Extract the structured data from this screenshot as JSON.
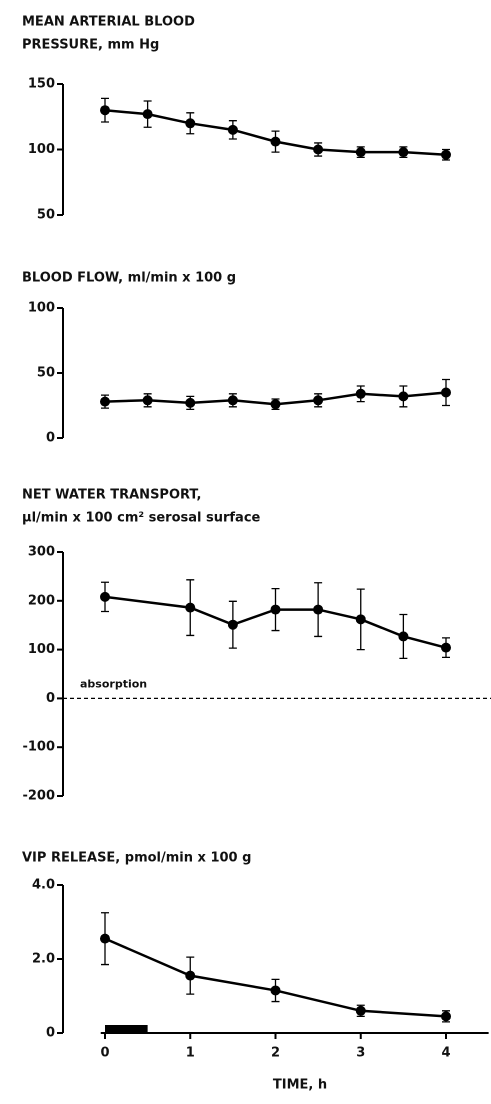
{
  "chart_data": [
    {
      "type": "line",
      "title": [
        "MEAN ARTERIAL BLOOD",
        "PRESSURE, mm Hg"
      ],
      "x": [
        0,
        0.5,
        1,
        1.5,
        2,
        2.5,
        3,
        3.5,
        4
      ],
      "series": [
        {
          "color": "#000000",
          "values": [
            130,
            127,
            120,
            115,
            106,
            100,
            98,
            98,
            96
          ],
          "errors": [
            9,
            10,
            8,
            7,
            8,
            5,
            4,
            4,
            4
          ]
        }
      ],
      "xlim": [
        -0.05,
        4.5
      ],
      "ylim": [
        50,
        150
      ],
      "yticks": [
        50,
        100,
        150
      ]
    },
    {
      "type": "line",
      "title": [
        "BLOOD FLOW, ml/min x 100 g"
      ],
      "x": [
        0,
        0.5,
        1,
        1.5,
        2,
        2.5,
        3,
        3.5,
        4
      ],
      "series": [
        {
          "color": "#000000",
          "values": [
            28,
            29,
            27,
            29,
            26,
            29,
            34,
            32,
            35
          ],
          "errors": [
            5,
            5,
            5,
            5,
            4,
            5,
            6,
            8,
            10
          ]
        }
      ],
      "xlim": [
        -0.05,
        4.5
      ],
      "ylim": [
        0,
        100
      ],
      "yticks": [
        0,
        50,
        100
      ]
    },
    {
      "type": "line",
      "title": [
        "NET WATER TRANSPORT,",
        "µl/min x 100 cm² serosal surface"
      ],
      "x": [
        0,
        1,
        1.5,
        2,
        2.5,
        3,
        3.5,
        4
      ],
      "series": [
        {
          "color": "#000000",
          "values": [
            208,
            186,
            151,
            182,
            182,
            162,
            127,
            104
          ],
          "errors": [
            30,
            57,
            48,
            43,
            55,
            62,
            45,
            20
          ]
        }
      ],
      "xlim": [
        -0.05,
        4.5
      ],
      "ylim": [
        -200,
        300
      ],
      "yticks": [
        -200,
        -100,
        0,
        100,
        200,
        300
      ],
      "reference_line": 0,
      "annotation": "absorption"
    },
    {
      "type": "line",
      "title": [
        "VIP RELEASE, pmol/min x 100 g"
      ],
      "x": [
        0,
        1,
        2,
        3,
        4
      ],
      "series": [
        {
          "color": "#000000",
          "values": [
            2.55,
            1.55,
            1.15,
            0.6,
            0.45
          ],
          "errors": [
            0.7,
            0.5,
            0.3,
            0.15,
            0.15
          ]
        }
      ],
      "xlim": [
        -0.05,
        4.5
      ],
      "ylim": [
        0,
        4
      ],
      "yticks": [
        0,
        {
          "value": 2,
          "label": "2.0"
        },
        {
          "value": 4,
          "label": "4.0"
        }
      ],
      "xticks": [
        0,
        1,
        2,
        3,
        4
      ],
      "xlabel": "TIME, h",
      "bar_range": [
        0,
        0.5
      ]
    }
  ]
}
